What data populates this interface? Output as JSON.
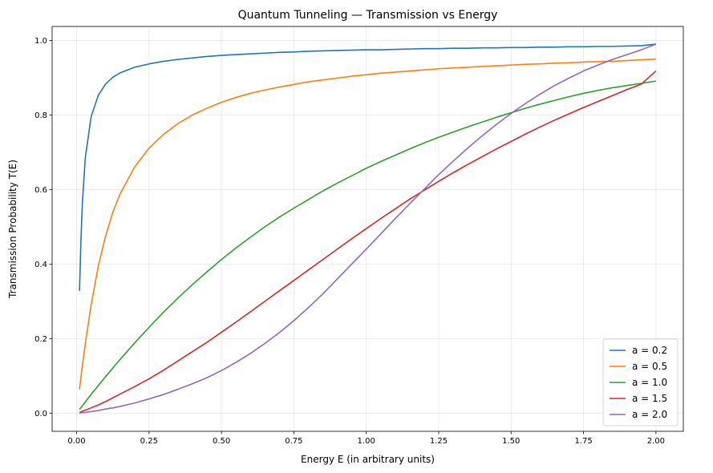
{
  "chart_data": {
    "type": "line",
    "title": "Quantum Tunneling — Transmission vs Energy",
    "xlabel": "Energy E (in arbitrary units)",
    "ylabel": "Transmission Probability T(E)",
    "xlim": [
      -0.0845,
      2.0945
    ],
    "ylim": [
      -0.0488,
      1.0375
    ],
    "xticks": [
      0.0,
      0.25,
      0.5,
      0.75,
      1.0,
      1.25,
      1.5,
      1.75,
      2.0
    ],
    "xtick_labels": [
      "0.00",
      "0.25",
      "0.50",
      "0.75",
      "1.00",
      "1.25",
      "1.50",
      "1.75",
      "2.00"
    ],
    "yticks": [
      0.0,
      0.2,
      0.4,
      0.6,
      0.8,
      1.0
    ],
    "ytick_labels": [
      "0.0",
      "0.2",
      "0.4",
      "0.6",
      "0.8",
      "1.0"
    ],
    "grid": true,
    "legend_position": "lower-right",
    "x": [
      0.01,
      0.015,
      0.02,
      0.03,
      0.05,
      0.075,
      0.1,
      0.125,
      0.15,
      0.2,
      0.25,
      0.3,
      0.35,
      0.4,
      0.45,
      0.5,
      0.55,
      0.6,
      0.65,
      0.7,
      0.75,
      0.8,
      0.85,
      0.9,
      0.95,
      1.0,
      1.05,
      1.1,
      1.15,
      1.2,
      1.25,
      1.3,
      1.35,
      1.4,
      1.45,
      1.5,
      1.55,
      1.6,
      1.65,
      1.7,
      1.75,
      1.8,
      1.85,
      1.9,
      1.95,
      2.0
    ],
    "series": [
      {
        "name": "a = 0.2",
        "color": "#1f77b4",
        "values": [
          0.328,
          0.465,
          0.565,
          0.685,
          0.795,
          0.853,
          0.883,
          0.901,
          0.913,
          0.928,
          0.937,
          0.944,
          0.949,
          0.953,
          0.957,
          0.96,
          0.962,
          0.964,
          0.966,
          0.968,
          0.969,
          0.971,
          0.972,
          0.973,
          0.974,
          0.975,
          0.975,
          0.976,
          0.977,
          0.978,
          0.978,
          0.979,
          0.979,
          0.98,
          0.98,
          0.981,
          0.981,
          0.982,
          0.982,
          0.983,
          0.983,
          0.984,
          0.984,
          0.985,
          0.986,
          0.99
        ]
      },
      {
        "name": "a = 0.5",
        "color": "#ff7f0e",
        "values": [
          0.064,
          0.097,
          0.128,
          0.186,
          0.29,
          0.395,
          0.475,
          0.539,
          0.588,
          0.66,
          0.711,
          0.748,
          0.777,
          0.8,
          0.818,
          0.834,
          0.847,
          0.858,
          0.867,
          0.875,
          0.882,
          0.889,
          0.894,
          0.899,
          0.904,
          0.908,
          0.912,
          0.915,
          0.918,
          0.921,
          0.924,
          0.926,
          0.928,
          0.93,
          0.932,
          0.934,
          0.936,
          0.937,
          0.939,
          0.94,
          0.942,
          0.943,
          0.944,
          0.946,
          0.948,
          0.95
        ]
      },
      {
        "name": "a = 1.0",
        "color": "#2ca02c",
        "values": [
          0.01,
          0.015,
          0.02,
          0.03,
          0.05,
          0.074,
          0.098,
          0.121,
          0.144,
          0.188,
          0.23,
          0.271,
          0.309,
          0.345,
          0.379,
          0.412,
          0.443,
          0.472,
          0.5,
          0.526,
          0.55,
          0.573,
          0.596,
          0.617,
          0.637,
          0.657,
          0.675,
          0.692,
          0.709,
          0.725,
          0.74,
          0.754,
          0.768,
          0.781,
          0.794,
          0.806,
          0.818,
          0.829,
          0.839,
          0.849,
          0.858,
          0.866,
          0.873,
          0.879,
          0.885,
          0.891
        ]
      },
      {
        "name": "a = 1.5",
        "color": "#d62728",
        "values": [
          0.002,
          0.003,
          0.005,
          0.008,
          0.014,
          0.022,
          0.031,
          0.041,
          0.051,
          0.071,
          0.092,
          0.115,
          0.14,
          0.165,
          0.19,
          0.217,
          0.244,
          0.272,
          0.3,
          0.328,
          0.356,
          0.384,
          0.412,
          0.44,
          0.468,
          0.495,
          0.522,
          0.548,
          0.574,
          0.598,
          0.622,
          0.645,
          0.667,
          0.688,
          0.709,
          0.729,
          0.749,
          0.768,
          0.786,
          0.803,
          0.82,
          0.836,
          0.852,
          0.868,
          0.883,
          0.918
        ]
      },
      {
        "name": "a = 2.0",
        "color": "#9467bd",
        "values": [
          0.0,
          0.001,
          0.001,
          0.002,
          0.004,
          0.007,
          0.011,
          0.014,
          0.018,
          0.027,
          0.038,
          0.05,
          0.064,
          0.079,
          0.095,
          0.114,
          0.136,
          0.16,
          0.187,
          0.216,
          0.248,
          0.283,
          0.32,
          0.36,
          0.4,
          0.44,
          0.481,
          0.522,
          0.562,
          0.601,
          0.64,
          0.676,
          0.711,
          0.744,
          0.775,
          0.804,
          0.831,
          0.856,
          0.879,
          0.899,
          0.918,
          0.934,
          0.949,
          0.962,
          0.975,
          0.99
        ]
      }
    ]
  }
}
